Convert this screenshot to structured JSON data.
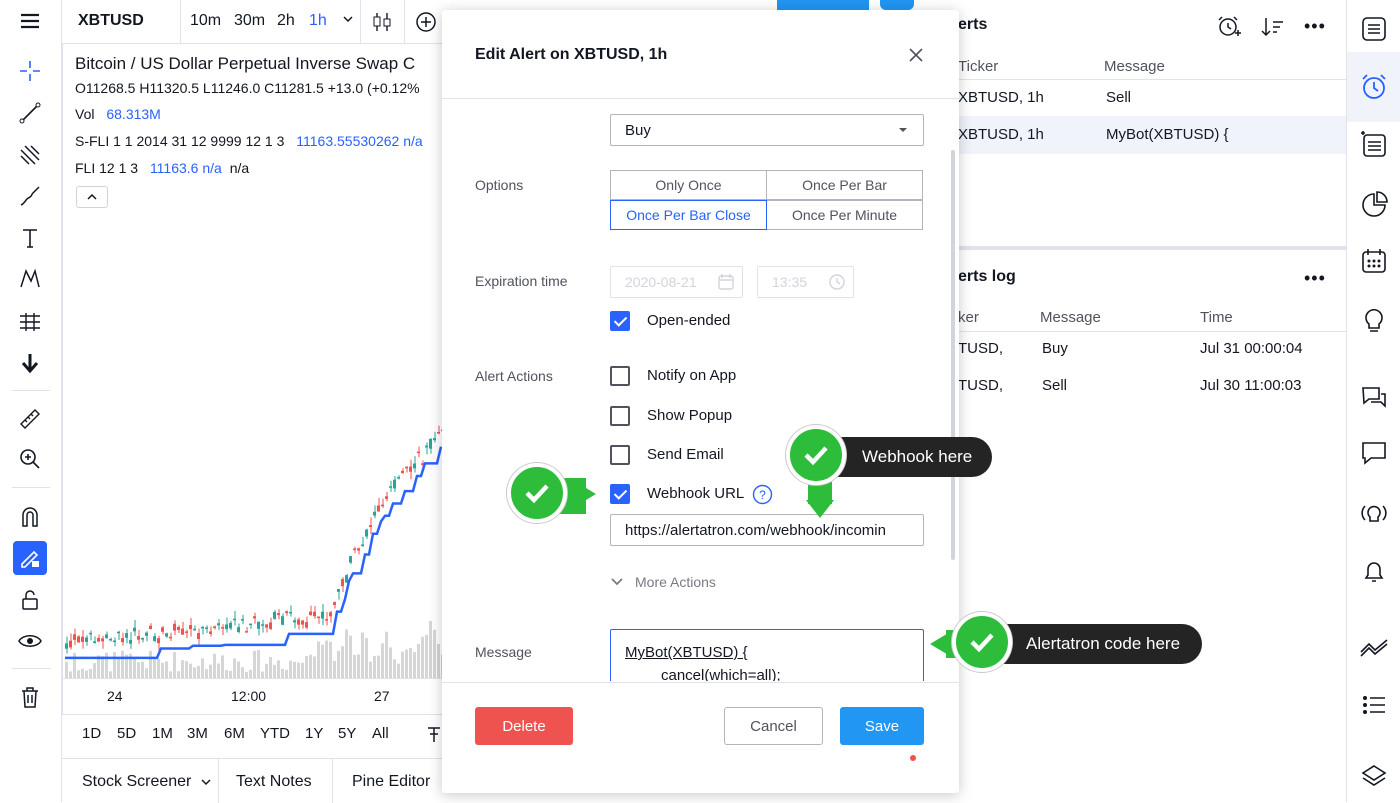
{
  "toolbar": {
    "symbol": "XBTUSD",
    "intervals": [
      "10m",
      "30m",
      "2h",
      "1h"
    ],
    "active_interval": "1h"
  },
  "chart": {
    "title": "Bitcoin / US Dollar Perpetual Inverse Swap C",
    "ohlc": "O11268.5  H11320.5  L11246.0  C11281.5  +13.0 (+0.12%",
    "vol_label": "Vol",
    "vol_value": "68.313M",
    "sfli_label": "S-FLI 1 1 2014 31 12 9999 12 1 3",
    "sfli_value": "11163.55530262  n/a",
    "fli_label": "FLI 12 1 3",
    "fli_value": "11163.6  n/a",
    "fli_extra": "n/a",
    "x_ticks": [
      "24",
      "12:00",
      "27"
    ]
  },
  "ranges": [
    "1D",
    "5D",
    "1M",
    "3M",
    "6M",
    "YTD",
    "1Y",
    "5Y",
    "All"
  ],
  "bottom_tabs": [
    "Stock Screener",
    "Text Notes",
    "Pine Editor"
  ],
  "alerts": {
    "title": "erts",
    "columns": [
      "Ticker",
      "Message"
    ],
    "rows": [
      {
        "ticker": "XBTUSD, 1h",
        "message": "Sell"
      },
      {
        "ticker": "XBTUSD, 1h",
        "message": "MyBot(XBTUSD) {"
      }
    ]
  },
  "alerts_log": {
    "title": "erts log",
    "columns": [
      "ker",
      "Message",
      "Time"
    ],
    "rows": [
      {
        "ticker": "TUSD,",
        "message": "Buy",
        "time": "Jul 31 00:00:04"
      },
      {
        "ticker": "TUSD,",
        "message": "Sell",
        "time": "Jul 30 11:00:03"
      }
    ]
  },
  "modal": {
    "title": "Edit Alert on XBTUSD, 1h",
    "condition_value": "Buy",
    "options_label": "Options",
    "options": [
      "Only Once",
      "Once Per Bar",
      "Once Per Bar Close",
      "Once Per Minute"
    ],
    "selected_option": "Once Per Bar Close",
    "expiration_label": "Expiration time",
    "expiration_date": "2020-08-21",
    "expiration_time": "13:35",
    "open_ended_label": "Open-ended",
    "alert_actions_label": "Alert Actions",
    "actions": [
      {
        "label": "Notify on App",
        "checked": false
      },
      {
        "label": "Show Popup",
        "checked": false
      },
      {
        "label": "Send Email",
        "checked": false
      },
      {
        "label": "Webhook URL",
        "checked": true
      }
    ],
    "webhook_url": "https://alertatron.com/webhook/incomin",
    "more_actions": "More Actions",
    "message_label": "Message",
    "message_line1": "MyBot(XBTUSD) {",
    "message_line2": "cancel(which=all);",
    "delete": "Delete",
    "cancel": "Cancel",
    "save": "Save"
  },
  "callouts": {
    "webhook": "Webhook here",
    "alertatron": "Alertatron code here"
  },
  "colors": {
    "accent": "#2962ff",
    "save": "#2196f3",
    "delete": "#ef5350",
    "callout_green": "#2dbd3b",
    "up_candle": "#26a69a",
    "down_candle": "#ef5350"
  }
}
